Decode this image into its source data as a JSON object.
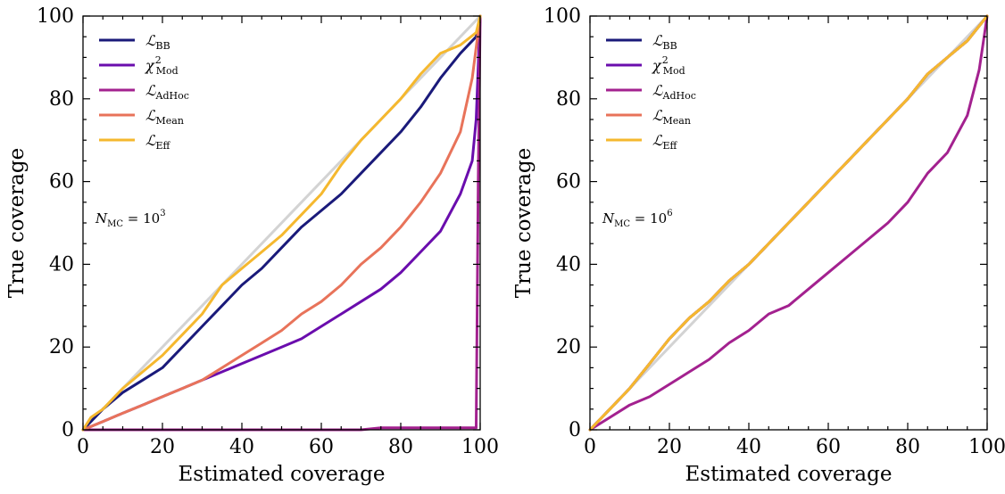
{
  "chart_data": [
    {
      "type": "line",
      "xlabel": "Estimated coverage",
      "ylabel": "True coverage",
      "xlim": [
        0,
        100
      ],
      "ylim": [
        0,
        100
      ],
      "xticks": [
        "0",
        "20",
        "40",
        "60",
        "80",
        "100"
      ],
      "yticks": [
        "0",
        "20",
        "40",
        "60",
        "80",
        "100"
      ],
      "legend_position": "top-left",
      "annotation": {
        "text": "N",
        "sub": "MC",
        "rest": " = 10",
        "sup": "3"
      },
      "reference_line": {
        "color": "#d3d3d3",
        "points": [
          [
            0,
            0
          ],
          [
            100,
            100
          ]
        ]
      },
      "series": [
        {
          "name": "ℒ",
          "sub": "BB",
          "color": "#1a1a7a",
          "points": [
            [
              0,
              0
            ],
            [
              2,
              2
            ],
            [
              5,
              5
            ],
            [
              10,
              9
            ],
            [
              15,
              12
            ],
            [
              20,
              15
            ],
            [
              25,
              20
            ],
            [
              30,
              25
            ],
            [
              35,
              30
            ],
            [
              40,
              35
            ],
            [
              45,
              39
            ],
            [
              50,
              44
            ],
            [
              55,
              49
            ],
            [
              60,
              53
            ],
            [
              65,
              57
            ],
            [
              70,
              62
            ],
            [
              75,
              67
            ],
            [
              80,
              72
            ],
            [
              85,
              78
            ],
            [
              90,
              85
            ],
            [
              95,
              91
            ],
            [
              99,
              95
            ],
            [
              100,
              100
            ]
          ]
        },
        {
          "name": "χ",
          "sub": "Mod",
          "sup": "2",
          "color": "#6a0dad",
          "points": [
            [
              0,
              0
            ],
            [
              5,
              2
            ],
            [
              10,
              4
            ],
            [
              15,
              6
            ],
            [
              20,
              8
            ],
            [
              25,
              10
            ],
            [
              30,
              12
            ],
            [
              35,
              14
            ],
            [
              40,
              16
            ],
            [
              45,
              18
            ],
            [
              50,
              20
            ],
            [
              55,
              22
            ],
            [
              60,
              25
            ],
            [
              65,
              28
            ],
            [
              70,
              31
            ],
            [
              75,
              34
            ],
            [
              80,
              38
            ],
            [
              85,
              43
            ],
            [
              90,
              48
            ],
            [
              95,
              57
            ],
            [
              98,
              65
            ],
            [
              99,
              75
            ],
            [
              100,
              100
            ]
          ]
        },
        {
          "name": "ℒ",
          "sub": "AdHoc",
          "color": "#a3218f",
          "points": [
            [
              0,
              0
            ],
            [
              70,
              0
            ],
            [
              75,
              0.5
            ],
            [
              99,
              0.5
            ],
            [
              99.5,
              60
            ],
            [
              100,
              100
            ]
          ]
        },
        {
          "name": "ℒ",
          "sub": "Mean",
          "color": "#e8735a",
          "points": [
            [
              0,
              0
            ],
            [
              5,
              2
            ],
            [
              10,
              4
            ],
            [
              15,
              6
            ],
            [
              20,
              8
            ],
            [
              25,
              10
            ],
            [
              30,
              12
            ],
            [
              35,
              15
            ],
            [
              40,
              18
            ],
            [
              45,
              21
            ],
            [
              50,
              24
            ],
            [
              55,
              28
            ],
            [
              60,
              31
            ],
            [
              65,
              35
            ],
            [
              70,
              40
            ],
            [
              75,
              44
            ],
            [
              80,
              49
            ],
            [
              85,
              55
            ],
            [
              90,
              62
            ],
            [
              95,
              72
            ],
            [
              98,
              85
            ],
            [
              100,
              100
            ]
          ]
        },
        {
          "name": "ℒ",
          "sub": "Eff",
          "color": "#f5b82e",
          "points": [
            [
              0,
              0
            ],
            [
              2,
              3
            ],
            [
              5,
              5
            ],
            [
              10,
              10
            ],
            [
              15,
              14
            ],
            [
              20,
              18
            ],
            [
              25,
              23
            ],
            [
              30,
              28
            ],
            [
              35,
              35
            ],
            [
              40,
              39
            ],
            [
              45,
              43
            ],
            [
              50,
              47
            ],
            [
              55,
              52
            ],
            [
              60,
              57
            ],
            [
              65,
              64
            ],
            [
              70,
              70
            ],
            [
              75,
              75
            ],
            [
              80,
              80
            ],
            [
              85,
              86
            ],
            [
              90,
              91
            ],
            [
              95,
              93
            ],
            [
              99,
              96
            ],
            [
              100,
              100
            ]
          ]
        }
      ]
    },
    {
      "type": "line",
      "xlabel": "Estimated coverage",
      "ylabel": "True coverage",
      "xlim": [
        0,
        100
      ],
      "ylim": [
        0,
        100
      ],
      "xticks": [
        "0",
        "20",
        "40",
        "60",
        "80",
        "100"
      ],
      "yticks": [
        "0",
        "20",
        "40",
        "60",
        "80",
        "100"
      ],
      "legend_position": "top-left",
      "annotation": {
        "text": "N",
        "sub": "MC",
        "rest": " = 10",
        "sup": "6"
      },
      "reference_line": {
        "color": "#d3d3d3",
        "points": [
          [
            0,
            0
          ],
          [
            100,
            100
          ]
        ]
      },
      "series": [
        {
          "name": "ℒ",
          "sub": "BB",
          "color": "#1a1a7a",
          "points": [
            [
              0,
              0
            ],
            [
              5,
              5
            ],
            [
              10,
              10
            ],
            [
              15,
              16
            ],
            [
              20,
              22
            ],
            [
              25,
              27
            ],
            [
              30,
              31
            ],
            [
              35,
              36
            ],
            [
              40,
              40
            ],
            [
              45,
              45
            ],
            [
              50,
              50
            ],
            [
              55,
              55
            ],
            [
              60,
              60
            ],
            [
              65,
              65
            ],
            [
              70,
              70
            ],
            [
              75,
              75
            ],
            [
              80,
              80
            ],
            [
              85,
              86
            ],
            [
              90,
              90
            ],
            [
              95,
              94
            ],
            [
              100,
              100
            ]
          ]
        },
        {
          "name": "χ",
          "sub": "Mod",
          "sup": "2",
          "color": "#6a0dad",
          "points": [
            [
              0,
              0
            ],
            [
              5,
              5
            ],
            [
              10,
              10
            ],
            [
              15,
              16
            ],
            [
              20,
              22
            ],
            [
              25,
              27
            ],
            [
              30,
              31
            ],
            [
              35,
              36
            ],
            [
              40,
              40
            ],
            [
              45,
              45
            ],
            [
              50,
              50
            ],
            [
              55,
              55
            ],
            [
              60,
              60
            ],
            [
              65,
              65
            ],
            [
              70,
              70
            ],
            [
              75,
              75
            ],
            [
              80,
              80
            ],
            [
              85,
              86
            ],
            [
              90,
              90
            ],
            [
              95,
              94
            ],
            [
              100,
              100
            ]
          ]
        },
        {
          "name": "ℒ",
          "sub": "AdHoc",
          "color": "#a3218f",
          "points": [
            [
              0,
              0
            ],
            [
              5,
              3
            ],
            [
              10,
              6
            ],
            [
              15,
              8
            ],
            [
              20,
              11
            ],
            [
              25,
              14
            ],
            [
              30,
              17
            ],
            [
              35,
              21
            ],
            [
              40,
              24
            ],
            [
              45,
              28
            ],
            [
              50,
              30
            ],
            [
              55,
              34
            ],
            [
              60,
              38
            ],
            [
              65,
              42
            ],
            [
              70,
              46
            ],
            [
              75,
              50
            ],
            [
              80,
              55
            ],
            [
              85,
              62
            ],
            [
              90,
              67
            ],
            [
              95,
              76
            ],
            [
              98,
              87
            ],
            [
              100,
              100
            ]
          ]
        },
        {
          "name": "ℒ",
          "sub": "Mean",
          "color": "#e8735a",
          "points": [
            [
              0,
              0
            ],
            [
              5,
              5
            ],
            [
              10,
              10
            ],
            [
              15,
              16
            ],
            [
              20,
              22
            ],
            [
              25,
              27
            ],
            [
              30,
              31
            ],
            [
              35,
              36
            ],
            [
              40,
              40
            ],
            [
              45,
              45
            ],
            [
              50,
              50
            ],
            [
              55,
              55
            ],
            [
              60,
              60
            ],
            [
              65,
              65
            ],
            [
              70,
              70
            ],
            [
              75,
              75
            ],
            [
              80,
              80
            ],
            [
              85,
              86
            ],
            [
              90,
              90
            ],
            [
              95,
              94
            ],
            [
              100,
              100
            ]
          ]
        },
        {
          "name": "ℒ",
          "sub": "Eff",
          "color": "#f5b82e",
          "points": [
            [
              0,
              0
            ],
            [
              5,
              5
            ],
            [
              10,
              10
            ],
            [
              15,
              16
            ],
            [
              20,
              22
            ],
            [
              25,
              27
            ],
            [
              30,
              31
            ],
            [
              35,
              36
            ],
            [
              40,
              40
            ],
            [
              45,
              45
            ],
            [
              50,
              50
            ],
            [
              55,
              55
            ],
            [
              60,
              60
            ],
            [
              65,
              65
            ],
            [
              70,
              70
            ],
            [
              75,
              75
            ],
            [
              80,
              80
            ],
            [
              85,
              86
            ],
            [
              90,
              90
            ],
            [
              95,
              94
            ],
            [
              100,
              100
            ]
          ]
        }
      ]
    }
  ]
}
